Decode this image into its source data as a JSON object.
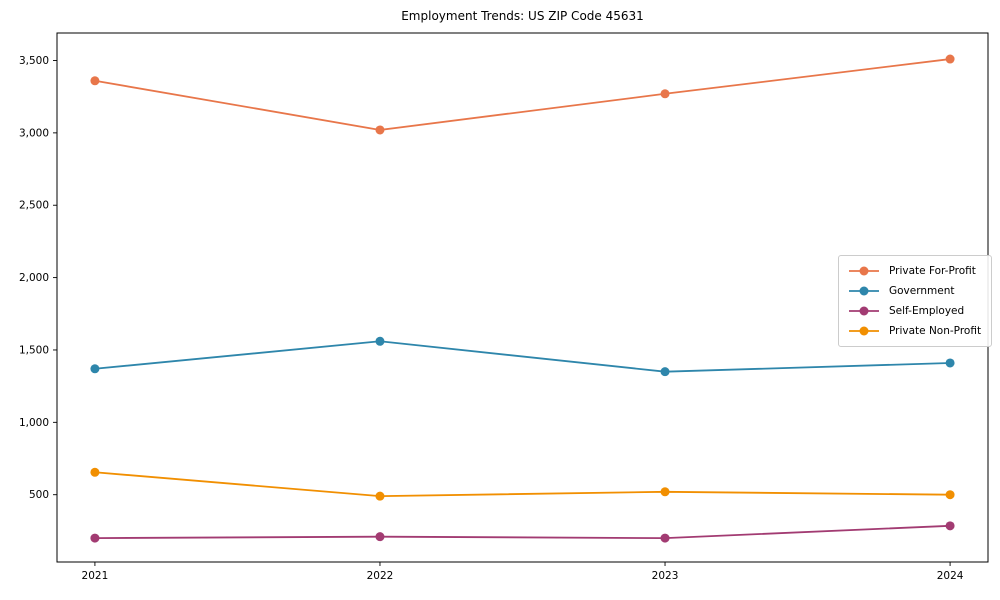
{
  "title": "Employment Trends: US ZIP Code 45631",
  "chart_data": {
    "type": "line",
    "title": "Employment Trends: US ZIP Code 45631",
    "xlabel": "",
    "ylabel": "",
    "x": [
      2021,
      2022,
      2023,
      2024
    ],
    "xtick_labels": [
      "2021",
      "2022",
      "2023",
      "2024"
    ],
    "yticks": [
      500,
      1000,
      1500,
      2000,
      2500,
      3000,
      3500
    ],
    "ytick_labels": [
      "500",
      "1,000",
      "1,500",
      "2,000",
      "2,500",
      "3,000",
      "3,500"
    ],
    "xlim": [
      2020.867,
      2024.133
    ],
    "ylim": [
      35,
      3690
    ],
    "grid": false,
    "legend_position": "center-right",
    "series": [
      {
        "name": "Private For-Profit",
        "color": "#E8764A",
        "values": [
          3360,
          3020,
          3270,
          3510
        ]
      },
      {
        "name": "Government",
        "color": "#2E86AB",
        "values": [
          1370,
          1560,
          1350,
          1410
        ]
      },
      {
        "name": "Self-Employed",
        "color": "#A23B72",
        "values": [
          200,
          210,
          200,
          285
        ]
      },
      {
        "name": "Private Non-Profit",
        "color": "#F18F01",
        "values": [
          655,
          490,
          520,
          500
        ]
      }
    ],
    "axis_color": "#000000"
  }
}
